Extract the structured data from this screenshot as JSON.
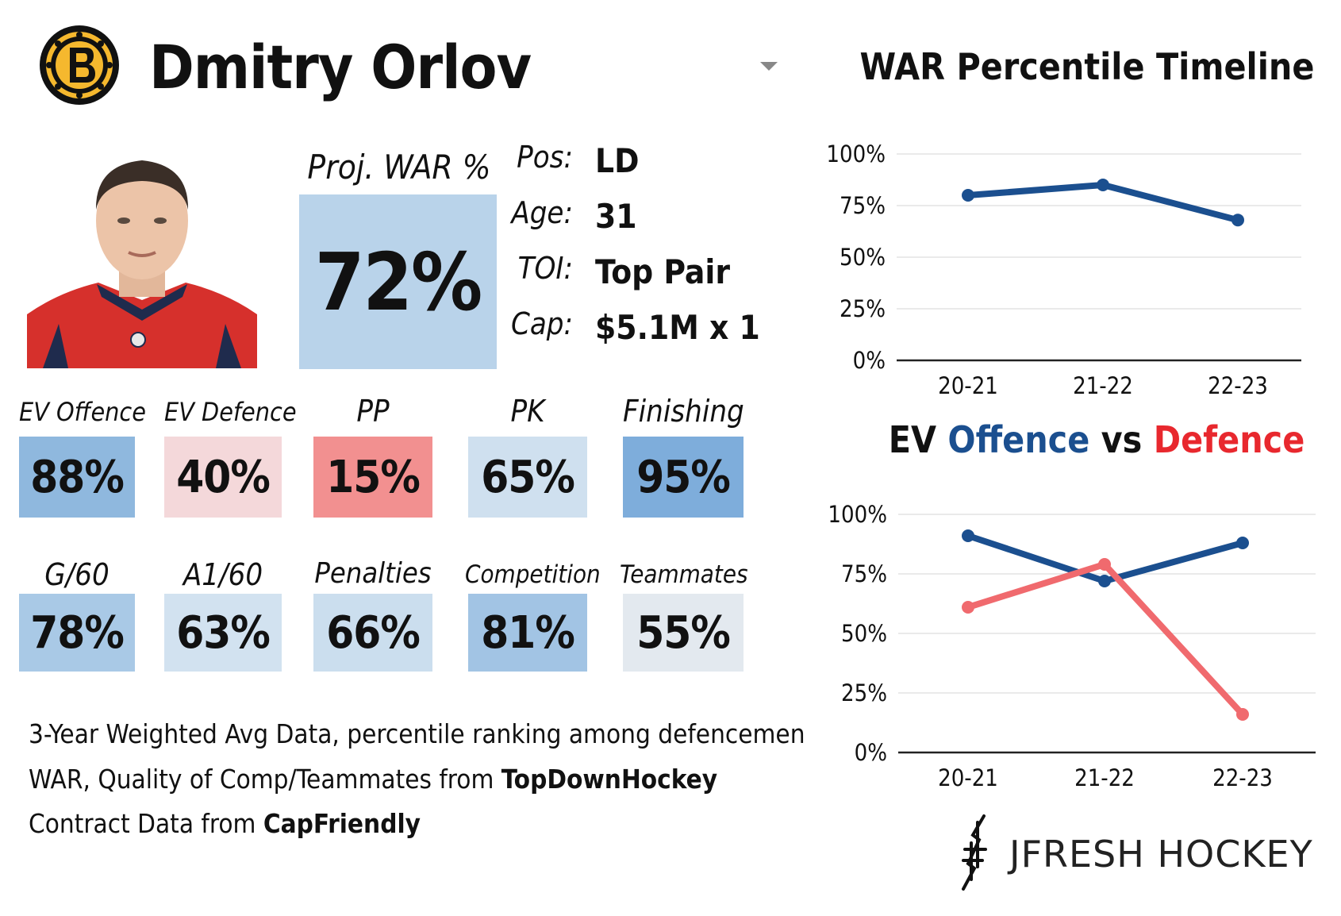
{
  "header": {
    "player_name": "Dmitry Orlov",
    "team_logo_icon": "boston-bruins-logo"
  },
  "headshot_icon": "player-headshot",
  "projected_war": {
    "label": "Proj. WAR %",
    "value": "72%"
  },
  "info": [
    {
      "key": "Pos:",
      "value": "LD"
    },
    {
      "key": "Age:",
      "value": "31"
    },
    {
      "key": "TOI:",
      "value": "Top Pair"
    },
    {
      "key": "Cap:",
      "value": "$5.1M x 1"
    }
  ],
  "stats": [
    {
      "label": "EV Offence",
      "value": "88%",
      "color": "#8fb8de"
    },
    {
      "label": "EV Defence",
      "value": "40%",
      "color": "#f4d8da"
    },
    {
      "label": "PP",
      "value": "15%",
      "color": "#f29090"
    },
    {
      "label": "PK",
      "value": "65%",
      "color": "#cfe0ef"
    },
    {
      "label": "Finishing",
      "value": "95%",
      "color": "#7eaddb"
    },
    {
      "label": "G/60",
      "value": "78%",
      "color": "#a9c9e6"
    },
    {
      "label": "A1/60",
      "value": "63%",
      "color": "#d2e2f0"
    },
    {
      "label": "Penalties",
      "value": "66%",
      "color": "#cbdeee"
    },
    {
      "label": "Competition",
      "value": "81%",
      "color": "#a2c4e4"
    },
    {
      "label": "Teammates",
      "value": "55%",
      "color": "#e3e9ef"
    }
  ],
  "footer": {
    "line1": "3-Year Weighted Avg Data, percentile ranking among defencemen",
    "line2_prefix": "WAR, Quality of Comp/Teammates from ",
    "line2_bold": "TopDownHockey",
    "line3_prefix": "Contract Data from ",
    "line3_bold": "CapFriendly"
  },
  "brand": {
    "text": "JFRESH HOCKEY",
    "icon": "jfresh-logo-icon"
  },
  "colors": {
    "offence": "#1b4f8f",
    "defence": "#f06a6e",
    "war_line": "#1b4f8f"
  },
  "chart_data": [
    {
      "type": "line",
      "title": "WAR Percentile Timeline",
      "categories": [
        "20-21",
        "21-22",
        "22-23"
      ],
      "series": [
        {
          "values": [
            80,
            85,
            68
          ]
        }
      ],
      "ylim": [
        0,
        100
      ],
      "yticks": [
        "0%",
        "25%",
        "50%",
        "75%",
        "100%"
      ],
      "grid": true
    },
    {
      "type": "line",
      "title_parts": [
        "EV ",
        "Offence",
        " vs ",
        "Defence"
      ],
      "categories": [
        "20-21",
        "21-22",
        "22-23"
      ],
      "series": [
        {
          "name": "Offence",
          "values": [
            91,
            72,
            88
          ]
        },
        {
          "name": "Defence",
          "values": [
            61,
            79,
            16
          ]
        }
      ],
      "ylim": [
        0,
        100
      ],
      "yticks": [
        "0%",
        "25%",
        "50%",
        "75%",
        "100%"
      ],
      "grid": true
    }
  ]
}
